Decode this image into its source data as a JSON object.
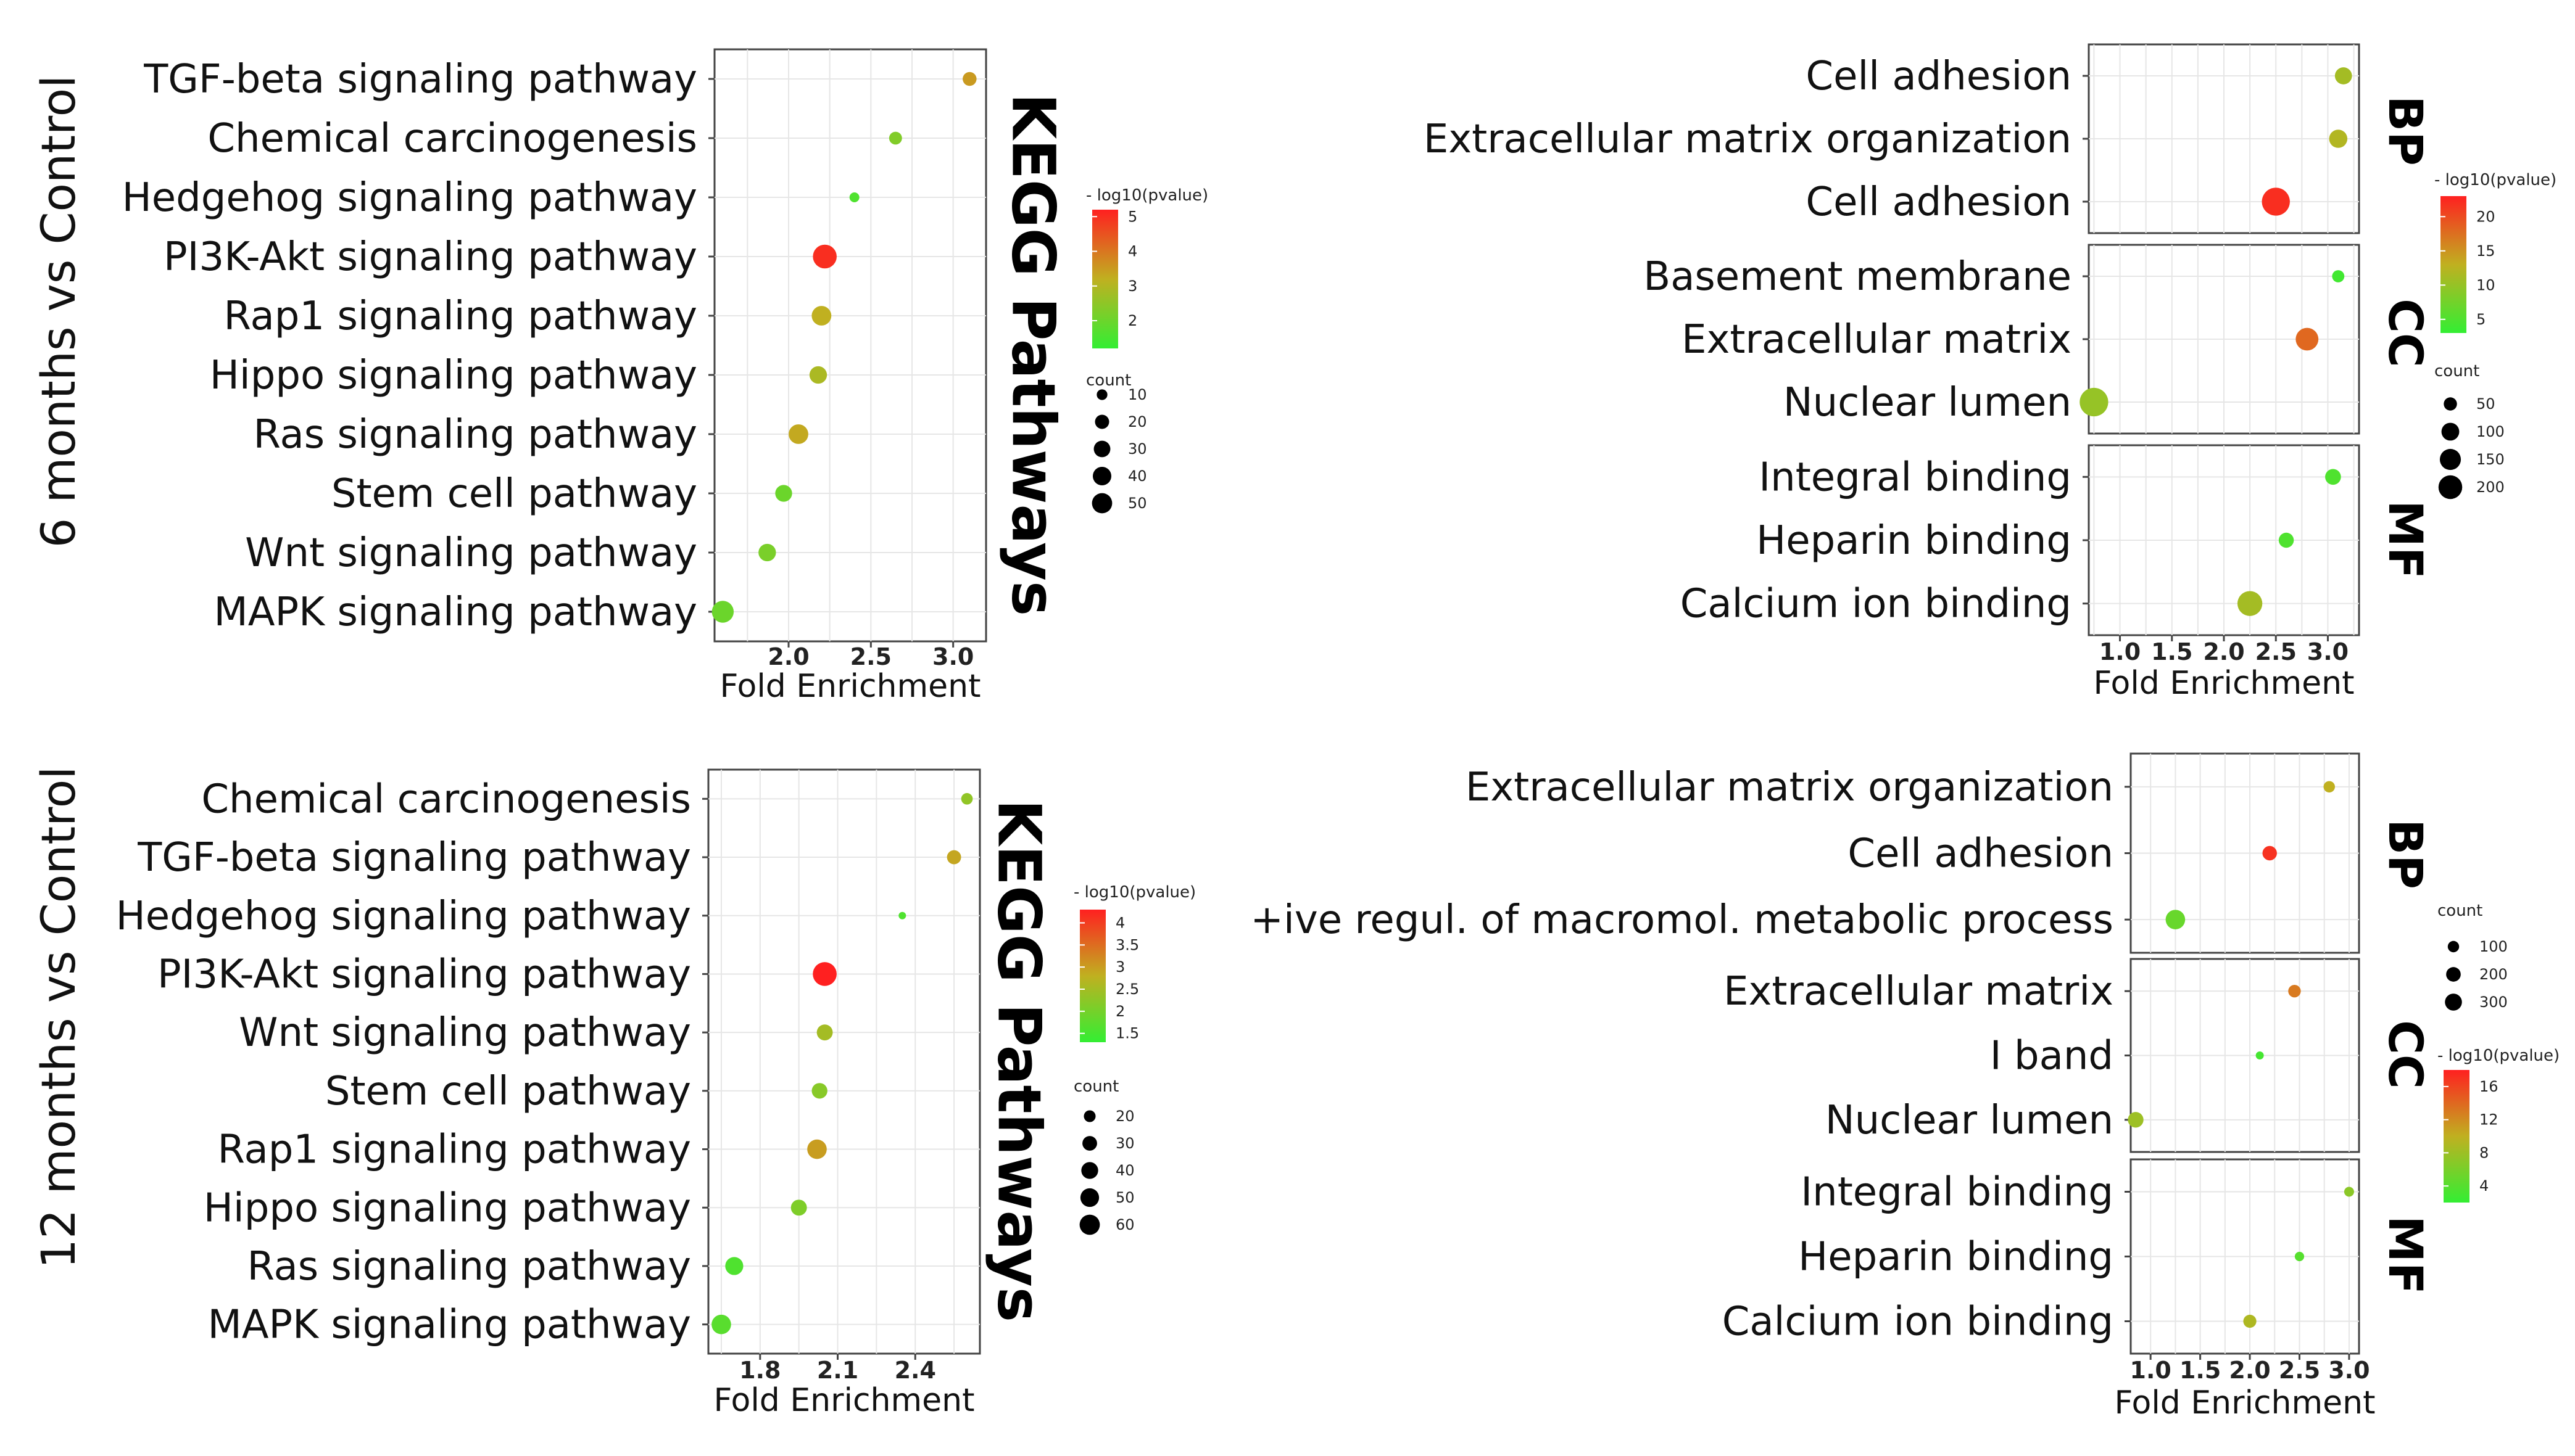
{
  "row_labels": [
    "6 months vs Control",
    "12 months vs Control"
  ],
  "colors": {
    "low": "#33ee33",
    "mid": "#c0b020",
    "high": "#ff2020"
  },
  "chart_data": [
    {
      "type": "scatter",
      "panel": "kegg-6m",
      "side_title": "KEGG Pathways",
      "xlabel": "Fold Enrichment",
      "xlim": [
        1.55,
        3.2
      ],
      "xticks": [
        2.0,
        2.5,
        3.0
      ],
      "xticklabels": [
        "2.0",
        "2.5",
        "3.0"
      ],
      "color_scale": {
        "title": "- log10(pvalue)",
        "min": 1.2,
        "max": 5.2,
        "ticks": [
          2,
          3,
          4,
          5
        ]
      },
      "size_scale": {
        "title": "count",
        "min": 5,
        "max": 55,
        "ticks": [
          10,
          20,
          30,
          40,
          50
        ]
      },
      "points": [
        {
          "term": "TGF-beta signaling pathway",
          "x": 3.1,
          "count": 12,
          "pvalue_log": 3.5
        },
        {
          "term": "Chemical carcinogenesis",
          "x": 2.65,
          "count": 10,
          "pvalue_log": 2.3
        },
        {
          "term": "Hedgehog signaling pathway",
          "x": 2.4,
          "count": 6,
          "pvalue_log": 1.6
        },
        {
          "term": "PI3K-Akt signaling pathway",
          "x": 2.22,
          "count": 50,
          "pvalue_log": 5.0
        },
        {
          "term": "Rap1 signaling pathway",
          "x": 2.2,
          "count": 30,
          "pvalue_log": 3.2
        },
        {
          "term": "Hippo signaling pathway",
          "x": 2.18,
          "count": 22,
          "pvalue_log": 2.9
        },
        {
          "term": "Ras signaling pathway",
          "x": 2.06,
          "count": 30,
          "pvalue_log": 3.3
        },
        {
          "term": "Stem cell pathway",
          "x": 1.97,
          "count": 20,
          "pvalue_log": 2.0
        },
        {
          "term": "Wnt signaling pathway",
          "x": 1.87,
          "count": 22,
          "pvalue_log": 2.2
        },
        {
          "term": "MAPK signaling pathway",
          "x": 1.6,
          "count": 40,
          "pvalue_log": 2.0
        }
      ]
    },
    {
      "type": "scatter",
      "panel": "go-6m",
      "xlabel": "Fold Enrichment",
      "xlim": [
        0.7,
        3.3
      ],
      "xticks": [
        1.0,
        1.5,
        2.0,
        2.5,
        3.0
      ],
      "xticklabels": [
        "1.0",
        "1.5",
        "2.0",
        "2.5",
        "3.0"
      ],
      "color_scale": {
        "title": "- log10(pvalue)",
        "min": 3,
        "max": 23,
        "ticks": [
          5,
          10,
          15,
          20
        ]
      },
      "size_scale": {
        "title": "count",
        "min": 20,
        "max": 230,
        "ticks": [
          50,
          100,
          150,
          200
        ]
      },
      "facets": [
        {
          "label": "BP",
          "points": [
            {
              "term": "Cell adhesion",
              "x": 3.15,
              "count": 60,
              "pvalue_log": 11
            },
            {
              "term": "Extracellular matrix organization",
              "x": 3.1,
              "count": 70,
              "pvalue_log": 12
            },
            {
              "term": "Cell adhesion",
              "x": 2.5,
              "count": 200,
              "pvalue_log": 22
            }
          ]
        },
        {
          "label": "CC",
          "points": [
            {
              "term": "Basement membrane",
              "x": 3.1,
              "count": 30,
              "pvalue_log": 4
            },
            {
              "term": "Extracellular matrix",
              "x": 2.8,
              "count": 120,
              "pvalue_log": 18
            },
            {
              "term": "Nuclear lumen",
              "x": 0.75,
              "count": 210,
              "pvalue_log": 10
            }
          ]
        },
        {
          "label": "MF",
          "points": [
            {
              "term": "Integral binding",
              "x": 3.05,
              "count": 50,
              "pvalue_log": 5
            },
            {
              "term": "Heparin binding",
              "x": 2.6,
              "count": 45,
              "pvalue_log": 5
            },
            {
              "term": "Calcium ion binding",
              "x": 2.25,
              "count": 150,
              "pvalue_log": 11
            }
          ]
        }
      ]
    },
    {
      "type": "scatter",
      "panel": "kegg-12m",
      "side_title": "KEGG Pathways",
      "xlabel": "Fold Enrichment",
      "xlim": [
        1.6,
        2.65
      ],
      "xticks": [
        1.8,
        2.1,
        2.4
      ],
      "xticklabels": [
        "1.8",
        "2.1",
        "2.4"
      ],
      "color_scale": {
        "title": "- log10(pvalue)",
        "min": 1.3,
        "max": 4.3,
        "ticks": [
          1.5,
          2.0,
          2.5,
          3.0,
          3.5,
          4.0
        ]
      },
      "size_scale": {
        "title": "count",
        "min": 12,
        "max": 65,
        "ticks": [
          20,
          30,
          40,
          50,
          60
        ]
      },
      "points": [
        {
          "term": "Chemical carcinogenesis",
          "x": 2.6,
          "count": 15,
          "pvalue_log": 2.3
        },
        {
          "term": "TGF-beta signaling pathway",
          "x": 2.55,
          "count": 20,
          "pvalue_log": 2.9
        },
        {
          "term": "Hedgehog signaling pathway",
          "x": 2.35,
          "count": 12,
          "pvalue_log": 1.6
        },
        {
          "term": "PI3K-Akt signaling pathway",
          "x": 2.05,
          "count": 60,
          "pvalue_log": 4.3
        },
        {
          "term": "Wnt signaling pathway",
          "x": 2.05,
          "count": 25,
          "pvalue_log": 2.5
        },
        {
          "term": "Stem cell pathway",
          "x": 2.03,
          "count": 24,
          "pvalue_log": 2.2
        },
        {
          "term": "Rap1 signaling pathway",
          "x": 2.02,
          "count": 38,
          "pvalue_log": 3.0
        },
        {
          "term": "Hippo signaling pathway",
          "x": 1.95,
          "count": 25,
          "pvalue_log": 2.1
        },
        {
          "term": "Ras signaling pathway",
          "x": 1.7,
          "count": 32,
          "pvalue_log": 1.6
        },
        {
          "term": "MAPK signaling pathway",
          "x": 1.65,
          "count": 38,
          "pvalue_log": 1.7
        }
      ]
    },
    {
      "type": "scatter",
      "panel": "go-12m",
      "xlabel": "Fold Enrichment",
      "xlim": [
        0.8,
        3.1
      ],
      "xticks": [
        1.0,
        1.5,
        2.0,
        2.5,
        3.0
      ],
      "xticklabels": [
        "1.0",
        "1.5",
        "2.0",
        "2.5",
        "3.0"
      ],
      "color_scale": {
        "title": "- log10(pvalue)",
        "min": 2,
        "max": 18,
        "ticks": [
          4,
          8,
          12,
          16
        ]
      },
      "size_scale": {
        "title": "count",
        "min": 20,
        "max": 340,
        "ticks": [
          100,
          200,
          300
        ]
      },
      "facets": [
        {
          "label": "BP",
          "points": [
            {
              "term": "Extracellular matrix organization",
              "x": 2.8,
              "count": 60,
              "pvalue_log": 10
            },
            {
              "term": "Cell adhesion",
              "x": 2.2,
              "count": 120,
              "pvalue_log": 17
            },
            {
              "term": "+ive regul. of macromol. metabolic process",
              "x": 1.25,
              "count": 280,
              "pvalue_log": 5
            }
          ]
        },
        {
          "label": "CC",
          "points": [
            {
              "term": "Extracellular matrix",
              "x": 2.45,
              "count": 80,
              "pvalue_log": 13
            },
            {
              "term": "I band",
              "x": 2.1,
              "count": 25,
              "pvalue_log": 3
            },
            {
              "term": "Nuclear lumen",
              "x": 0.85,
              "count": 150,
              "pvalue_log": 8
            }
          ]
        },
        {
          "label": "MF",
          "points": [
            {
              "term": "Integral binding",
              "x": 3.0,
              "count": 40,
              "pvalue_log": 7
            },
            {
              "term": "Heparin binding",
              "x": 2.5,
              "count": 35,
              "pvalue_log": 4
            },
            {
              "term": "Calcium ion binding",
              "x": 2.0,
              "count": 90,
              "pvalue_log": 9
            }
          ]
        }
      ]
    }
  ]
}
